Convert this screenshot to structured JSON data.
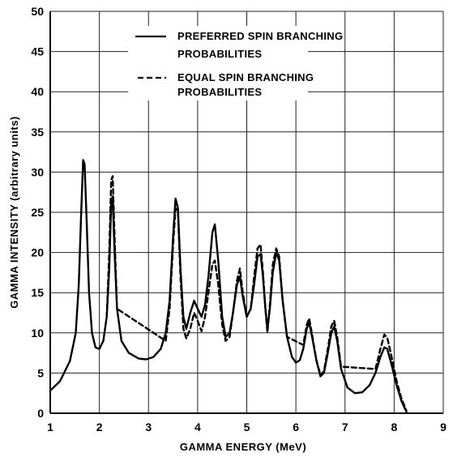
{
  "chart_data": {
    "type": "line",
    "title": "",
    "xlabel": "GAMMA ENERGY (MeV)",
    "ylabel": "GAMMA INTENSITY (arbitrary units)",
    "xlim": [
      1,
      9
    ],
    "ylim": [
      0,
      50
    ],
    "x_ticks": [
      "1",
      "2",
      "3",
      "4",
      "5",
      "6",
      "7",
      "8",
      "9"
    ],
    "y_ticks": [
      "0",
      "5",
      "10",
      "15",
      "20",
      "25",
      "30",
      "35",
      "40",
      "45",
      "50"
    ],
    "grid": true,
    "legend_position": "top-center",
    "series": [
      {
        "name": "PREFERRED SPIN BRANCHING PROBABILITIES",
        "line_style": "solid",
        "color": "#000000",
        "points": [
          [
            1.0,
            2.8
          ],
          [
            1.2,
            4.0
          ],
          [
            1.4,
            6.5
          ],
          [
            1.52,
            10.0
          ],
          [
            1.58,
            16.0
          ],
          [
            1.63,
            25.0
          ],
          [
            1.67,
            31.5
          ],
          [
            1.7,
            31.0
          ],
          [
            1.74,
            24.0
          ],
          [
            1.79,
            15.0
          ],
          [
            1.85,
            10.0
          ],
          [
            1.92,
            8.2
          ],
          [
            2.0,
            8.0
          ],
          [
            2.08,
            9.0
          ],
          [
            2.15,
            12.0
          ],
          [
            2.2,
            18.0
          ],
          [
            2.24,
            26.0
          ],
          [
            2.27,
            27.0
          ],
          [
            2.31,
            20.0
          ],
          [
            2.36,
            13.0
          ],
          [
            2.45,
            9.0
          ],
          [
            2.6,
            7.5
          ],
          [
            2.8,
            6.8
          ],
          [
            2.95,
            6.7
          ],
          [
            3.1,
            7.0
          ],
          [
            3.25,
            8.0
          ],
          [
            3.35,
            10.0
          ],
          [
            3.43,
            14.0
          ],
          [
            3.5,
            22.0
          ],
          [
            3.55,
            26.7
          ],
          [
            3.6,
            25.5
          ],
          [
            3.65,
            18.0
          ],
          [
            3.71,
            12.0
          ],
          [
            3.77,
            10.5
          ],
          [
            3.85,
            12.5
          ],
          [
            3.93,
            14.0
          ],
          [
            4.0,
            13.0
          ],
          [
            4.08,
            12.0
          ],
          [
            4.15,
            13.5
          ],
          [
            4.22,
            17.0
          ],
          [
            4.3,
            22.5
          ],
          [
            4.35,
            23.5
          ],
          [
            4.42,
            19.0
          ],
          [
            4.5,
            12.0
          ],
          [
            4.57,
            9.5
          ],
          [
            4.65,
            10.0
          ],
          [
            4.72,
            12.5
          ],
          [
            4.8,
            16.0
          ],
          [
            4.86,
            17.0
          ],
          [
            4.92,
            14.5
          ],
          [
            5.0,
            12.0
          ],
          [
            5.08,
            13.0
          ],
          [
            5.15,
            16.0
          ],
          [
            5.22,
            19.5
          ],
          [
            5.28,
            19.8
          ],
          [
            5.33,
            17.0
          ],
          [
            5.38,
            13.0
          ],
          [
            5.42,
            10.5
          ],
          [
            5.47,
            13.0
          ],
          [
            5.53,
            17.5
          ],
          [
            5.6,
            20.0
          ],
          [
            5.66,
            19.0
          ],
          [
            5.73,
            14.0
          ],
          [
            5.82,
            9.5
          ],
          [
            5.92,
            7.0
          ],
          [
            6.0,
            6.3
          ],
          [
            6.08,
            6.6
          ],
          [
            6.15,
            8.0
          ],
          [
            6.22,
            10.5
          ],
          [
            6.27,
            11.3
          ],
          [
            6.33,
            9.5
          ],
          [
            6.42,
            6.5
          ],
          [
            6.5,
            4.6
          ],
          [
            6.57,
            5.0
          ],
          [
            6.65,
            7.5
          ],
          [
            6.72,
            10.0
          ],
          [
            6.78,
            10.8
          ],
          [
            6.84,
            9.0
          ],
          [
            6.92,
            5.5
          ],
          [
            7.05,
            3.2
          ],
          [
            7.2,
            2.5
          ],
          [
            7.35,
            2.6
          ],
          [
            7.5,
            3.5
          ],
          [
            7.62,
            5.0
          ],
          [
            7.72,
            7.0
          ],
          [
            7.8,
            8.2
          ],
          [
            7.86,
            8.0
          ],
          [
            7.95,
            6.0
          ],
          [
            8.05,
            3.5
          ],
          [
            8.15,
            1.5
          ],
          [
            8.25,
            0.2
          ]
        ]
      },
      {
        "name": "EQUAL SPIN BRANCHING PROBABILITIES",
        "line_style": "dashed",
        "color": "#000000",
        "points": [
          [
            2.15,
            12.0
          ],
          [
            2.2,
            20.0
          ],
          [
            2.24,
            29.0
          ],
          [
            2.27,
            29.5
          ],
          [
            2.31,
            22.0
          ],
          [
            2.36,
            13.0
          ],
          [
            3.35,
            9.0
          ],
          [
            3.43,
            13.0
          ],
          [
            3.5,
            21.0
          ],
          [
            3.55,
            25.5
          ],
          [
            3.6,
            25.0
          ],
          [
            3.65,
            17.0
          ],
          [
            3.71,
            10.5
          ],
          [
            3.77,
            9.3
          ],
          [
            3.85,
            10.5
          ],
          [
            3.93,
            12.5
          ],
          [
            4.0,
            11.5
          ],
          [
            4.08,
            10.2
          ],
          [
            4.15,
            12.0
          ],
          [
            4.22,
            15.0
          ],
          [
            4.3,
            18.5
          ],
          [
            4.35,
            19.0
          ],
          [
            4.42,
            16.0
          ],
          [
            4.5,
            11.0
          ],
          [
            4.57,
            9.0
          ],
          [
            4.65,
            9.5
          ],
          [
            4.72,
            12.5
          ],
          [
            4.8,
            16.5
          ],
          [
            4.86,
            18.0
          ],
          [
            4.92,
            15.0
          ],
          [
            5.0,
            12.0
          ],
          [
            5.08,
            13.0
          ],
          [
            5.15,
            17.0
          ],
          [
            5.22,
            20.5
          ],
          [
            5.28,
            21.0
          ],
          [
            5.33,
            17.5
          ],
          [
            5.38,
            13.0
          ],
          [
            5.42,
            10.0
          ],
          [
            5.47,
            13.5
          ],
          [
            5.53,
            18.5
          ],
          [
            5.6,
            20.5
          ],
          [
            5.66,
            19.5
          ],
          [
            5.73,
            14.0
          ],
          [
            5.82,
            9.5
          ],
          [
            6.15,
            8.5
          ],
          [
            6.22,
            11.0
          ],
          [
            6.27,
            11.8
          ],
          [
            6.33,
            9.8
          ],
          [
            6.42,
            6.5
          ],
          [
            6.5,
            4.8
          ],
          [
            6.57,
            5.2
          ],
          [
            6.65,
            8.0
          ],
          [
            6.72,
            10.8
          ],
          [
            6.78,
            11.5
          ],
          [
            6.84,
            9.5
          ],
          [
            6.92,
            5.8
          ],
          [
            7.62,
            5.5
          ],
          [
            7.72,
            8.0
          ],
          [
            7.8,
            9.8
          ],
          [
            7.86,
            9.4
          ],
          [
            7.95,
            7.0
          ],
          [
            8.05,
            4.0
          ],
          [
            8.15,
            1.8
          ],
          [
            8.25,
            0.3
          ]
        ]
      }
    ]
  }
}
